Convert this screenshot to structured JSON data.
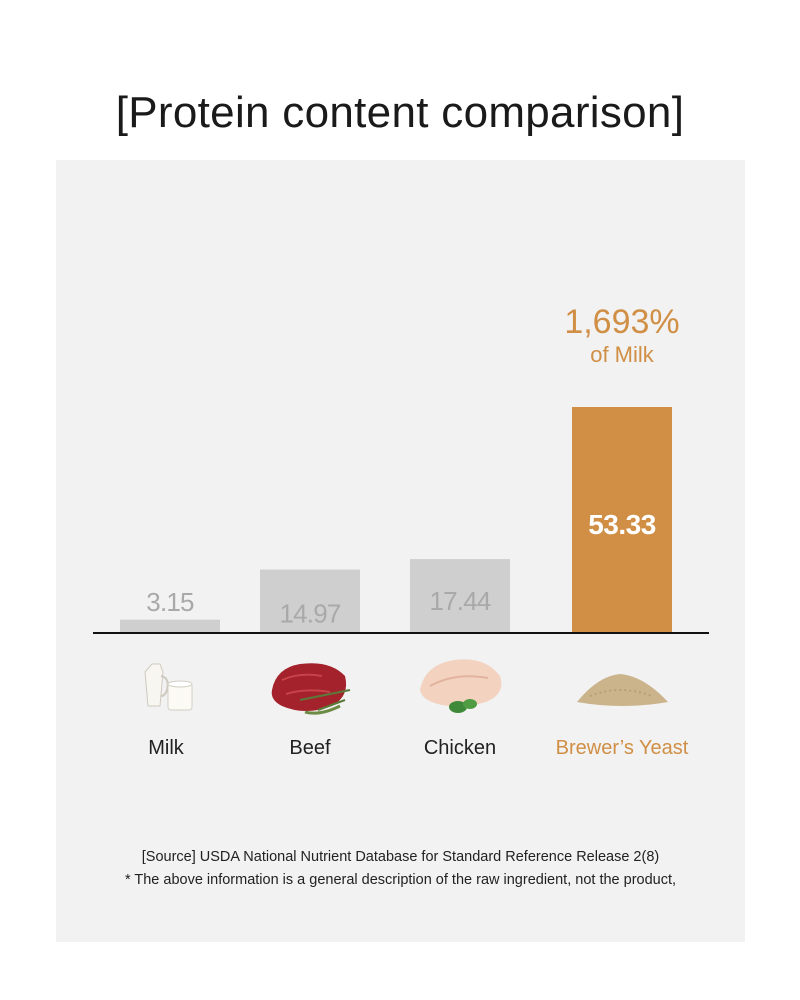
{
  "title": "[Protein content comparison]",
  "colors": {
    "highlight": "#d08f45",
    "bar_gray": "#cfcfcf",
    "value_gray": "#a9a9a9",
    "panel": "#f2f2f2",
    "label_dark": "#222222",
    "value_highlight": "#ffffff"
  },
  "chart_data": {
    "type": "bar",
    "categories": [
      "Milk",
      "Beef",
      "Chicken",
      "Brewer’s Yeast"
    ],
    "values": [
      3.15,
      14.97,
      17.44,
      53.33
    ],
    "value_labels": [
      "3.15",
      "14.97",
      "17.44",
      "53.33"
    ],
    "highlight_index": 3,
    "ylim": [
      0,
      53.33
    ],
    "annotation": {
      "percent": "1,693%",
      "text": "of Milk"
    },
    "icons": [
      "milk-icon",
      "beef-icon",
      "chicken-icon",
      "brewers-yeast-icon"
    ]
  },
  "footer": {
    "source": "[Source] USDA National Nutrient Database for Standard Reference Release 2(8)",
    "disclaimer": "* The above information is a general description of the raw ingredient, not the product,"
  }
}
